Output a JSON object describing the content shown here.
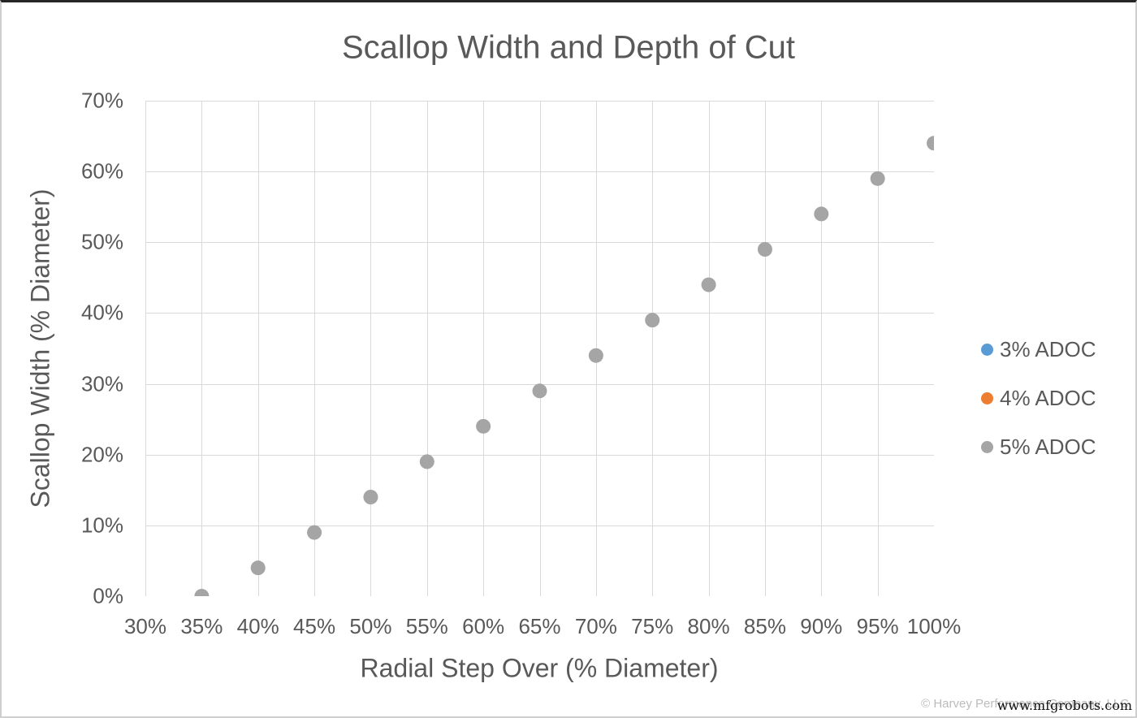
{
  "watermark": {
    "copyright": "© Harvey Performance Company, LLC",
    "overlay_url": "www.mfgrobots.com"
  },
  "chart_data": {
    "type": "scatter",
    "title": "Scallop Width and Depth of Cut",
    "xlabel": "Radial Step Over (% Diameter)",
    "ylabel": "Scallop Width (% Diameter)",
    "xlim": [
      30,
      100
    ],
    "ylim": [
      0,
      70
    ],
    "x_tick_values": [
      30,
      35,
      40,
      45,
      50,
      55,
      60,
      65,
      70,
      75,
      80,
      85,
      90,
      95,
      100
    ],
    "x_tick_labels": [
      "30%",
      "35%",
      "40%",
      "45%",
      "50%",
      "55%",
      "60%",
      "65%",
      "70%",
      "75%",
      "80%",
      "85%",
      "90%",
      "95%",
      "100%"
    ],
    "y_tick_values": [
      0,
      10,
      20,
      30,
      40,
      50,
      60,
      70
    ],
    "y_tick_labels": [
      "0%",
      "10%",
      "20%",
      "30%",
      "40%",
      "50%",
      "60%",
      "70%"
    ],
    "grid": true,
    "legend_position": "right",
    "legend": [
      {
        "label": "3% ADOC",
        "color": "#5B9BD5"
      },
      {
        "label": "4% ADOC",
        "color": "#ED7D31"
      },
      {
        "label": "5% ADOC",
        "color": "#A5A5A5"
      }
    ],
    "series": [
      {
        "name": "3% ADOC",
        "color": "#5B9BD5",
        "visible_points": []
      },
      {
        "name": "4% ADOC",
        "color": "#ED7D31",
        "visible_points": []
      },
      {
        "name": "5% ADOC",
        "color": "#A5A5A5",
        "visible_points": [
          [
            35,
            0
          ],
          [
            40,
            4
          ],
          [
            45,
            9
          ],
          [
            50,
            14
          ],
          [
            55,
            19
          ],
          [
            60,
            24
          ],
          [
            65,
            29
          ],
          [
            70,
            34
          ],
          [
            75,
            39
          ],
          [
            80,
            44
          ],
          [
            85,
            49
          ],
          [
            90,
            54
          ],
          [
            95,
            59
          ],
          [
            100,
            64
          ]
        ]
      }
    ],
    "marker_radius_px": 9,
    "colors": {
      "grid": "#D9D9D9",
      "axis_line": "#BFBFBF",
      "text": "#595959"
    }
  }
}
